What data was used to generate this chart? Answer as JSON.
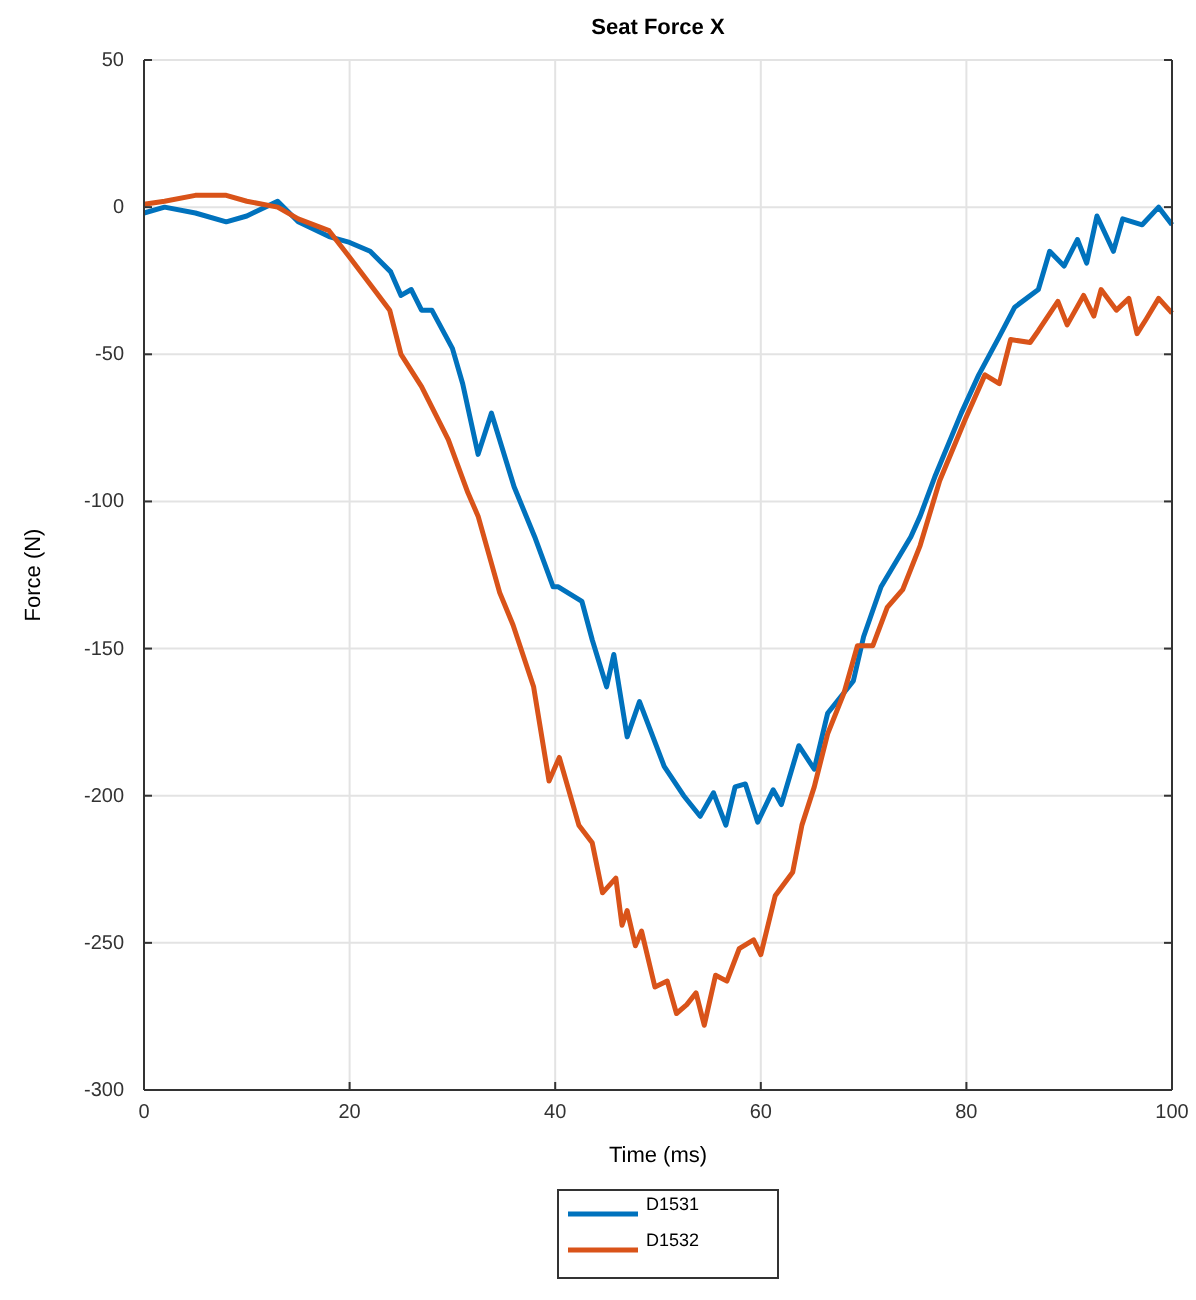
{
  "chart_data": {
    "type": "line",
    "title": "Seat Force X",
    "xlabel": "Time (ms)",
    "ylabel": "Force (N)",
    "xlim": [
      0,
      100
    ],
    "xticks": [
      0,
      20,
      40,
      60,
      80,
      100
    ],
    "ylim": [
      -300,
      50
    ],
    "yticks": [
      -300,
      -250,
      -200,
      -150,
      -100,
      -50,
      0,
      50
    ],
    "grid": true,
    "legend": "bottom",
    "line_style": "solid",
    "marker": "none",
    "series": [
      {
        "name": "D1531",
        "color": "#0072bd",
        "x": [
          0,
          2,
          5,
          8,
          10,
          13,
          15,
          18,
          20,
          22,
          24,
          25,
          26,
          27,
          28,
          30,
          31,
          32.5,
          33.8,
          36,
          38,
          39.8,
          40.3,
          42.6,
          43.6,
          45,
          45.7,
          47,
          48.2,
          50.6,
          52.5,
          54.1,
          55.4,
          56.6,
          57.5,
          58.5,
          59.7,
          61.2,
          62,
          63.7,
          65.2,
          66.5,
          69,
          70,
          71.7,
          74.6,
          75.5,
          77,
          79.5,
          81.2,
          83.2,
          84.7,
          87,
          88.1,
          89.5,
          90.8,
          91.7,
          92.7,
          94.3,
          95.2,
          97.1,
          98.7,
          100
        ],
        "values": [
          -2,
          0,
          -2,
          -5,
          -3,
          2,
          -5,
          -10,
          -12,
          -15,
          -22,
          -30,
          -28,
          -35,
          -35,
          -48,
          -60,
          -84,
          -70,
          -95,
          -112,
          -129,
          -129,
          -134,
          -147,
          -163,
          -152,
          -180,
          -168,
          -190,
          -200,
          -207,
          -199,
          -210,
          -197,
          -196,
          -209,
          -198,
          -203,
          -183,
          -191,
          -172,
          -161,
          -146,
          -129,
          -112,
          -105,
          -91,
          -70,
          -57,
          -44,
          -34,
          -28,
          -15,
          -20,
          -11,
          -19,
          -3,
          -15,
          -4,
          -6,
          0,
          -6
        ]
      },
      {
        "name": "D1532",
        "color": "#d95319",
        "x": [
          0,
          2,
          5,
          8,
          10,
          13,
          15,
          18,
          20,
          22.6,
          23.9,
          25,
          27,
          29.6,
          31.5,
          32.5,
          34.6,
          35.9,
          37.9,
          39.4,
          40.4,
          42.3,
          43.6,
          44.6,
          45.9,
          46.5,
          47,
          47.8,
          48.4,
          49.7,
          50.9,
          51.8,
          52.8,
          53.7,
          54.5,
          55.6,
          56.7,
          57.9,
          59.3,
          60,
          61.4,
          63.1,
          64,
          65.2,
          66.5,
          68.1,
          69.4,
          70.9,
          72.3,
          73.8,
          75.5,
          77.4,
          79.9,
          81.8,
          83.2,
          84.3,
          86.2,
          87,
          88.9,
          89.8,
          91.4,
          92.4,
          93.1,
          94.6,
          95.8,
          96.6,
          97.5,
          98.7,
          100
        ],
        "values": [
          1,
          2,
          4,
          4,
          2,
          0,
          -4,
          -8,
          -17,
          -29,
          -35,
          -50,
          -61,
          -79,
          -97,
          -105,
          -131,
          -142,
          -163,
          -195,
          -187,
          -210,
          -216,
          -233,
          -228,
          -244,
          -239,
          -251,
          -246,
          -265,
          -263,
          -274,
          -271,
          -267,
          -278,
          -261,
          -263,
          -252,
          -249,
          -254,
          -234,
          -226,
          -210,
          -197,
          -179,
          -165,
          -149,
          -149,
          -136,
          -130,
          -115,
          -93,
          -72,
          -57,
          -60,
          -45,
          -46,
          -42,
          -32,
          -40,
          -30,
          -37,
          -28,
          -35,
          -31,
          -43,
          -38,
          -31,
          -36
        ]
      }
    ]
  }
}
